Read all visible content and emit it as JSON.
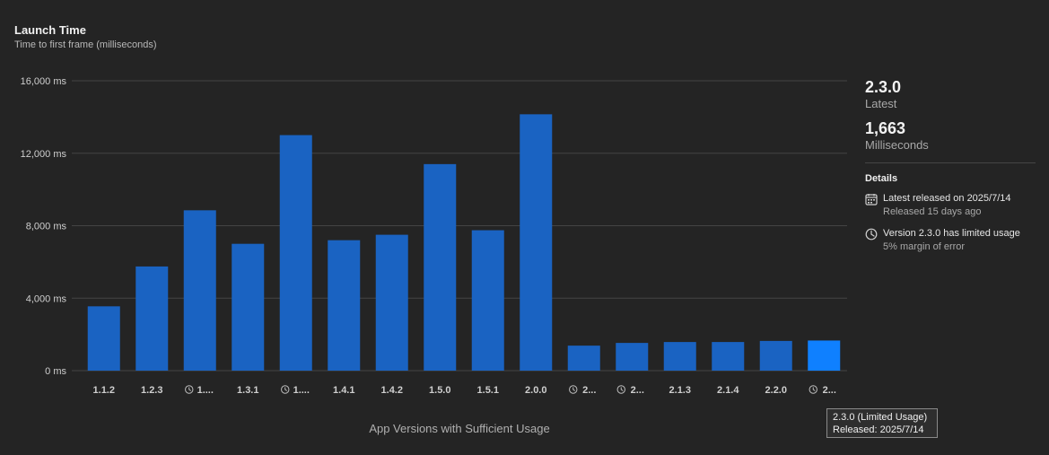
{
  "header": {
    "title": "Launch Time",
    "subtitle": "Time to first frame (milliseconds)"
  },
  "summary": {
    "version": "2.3.0",
    "version_caption": "Latest",
    "value": "1,663",
    "value_caption": "Milliseconds"
  },
  "details": {
    "heading": "Details",
    "items": [
      {
        "icon": "calendar-icon",
        "title": "Latest released on 2025/7/14",
        "sub": "Released 15 days ago"
      },
      {
        "icon": "limited-usage-icon",
        "title": "Version 2.3.0 has limited usage",
        "sub": "5% margin of error"
      }
    ]
  },
  "tooltip": {
    "line1": "2.3.0 (Limited Usage)",
    "line2": "Released: 2025/7/14"
  },
  "chart_data": {
    "type": "bar",
    "title": "Launch Time",
    "subtitle": "Time to first frame (milliseconds)",
    "xlabel": "App Versions with Sufficient Usage",
    "ylabel": "",
    "ylim": [
      0,
      16000
    ],
    "yticks": [
      0,
      4000,
      8000,
      12000,
      16000
    ],
    "ytick_labels": [
      "0 ms",
      "4,000 ms",
      "8,000 ms",
      "12,000 ms",
      "16,000 ms"
    ],
    "grid": true,
    "categories": [
      "1.1.2",
      "1.2.3",
      "1....",
      "1.3.1",
      "1....",
      "1.4.1",
      "1.4.2",
      "1.5.0",
      "1.5.1",
      "2.0.0",
      "2...",
      "2...",
      "2.1.3",
      "2.1.4",
      "2.2.0",
      "2..."
    ],
    "limited_usage": [
      false,
      false,
      true,
      false,
      true,
      false,
      false,
      false,
      false,
      false,
      true,
      true,
      false,
      false,
      false,
      true
    ],
    "values": [
      3550,
      5750,
      8850,
      7000,
      13000,
      7200,
      7500,
      11400,
      7750,
      14150,
      1380,
      1530,
      1580,
      1580,
      1640,
      1663
    ],
    "highlighted_index": 15,
    "colors": {
      "bar": "#1a63c2",
      "highlight": "#0f80ff",
      "grid": "#444444",
      "tick_text": "#cfcfcf"
    }
  }
}
